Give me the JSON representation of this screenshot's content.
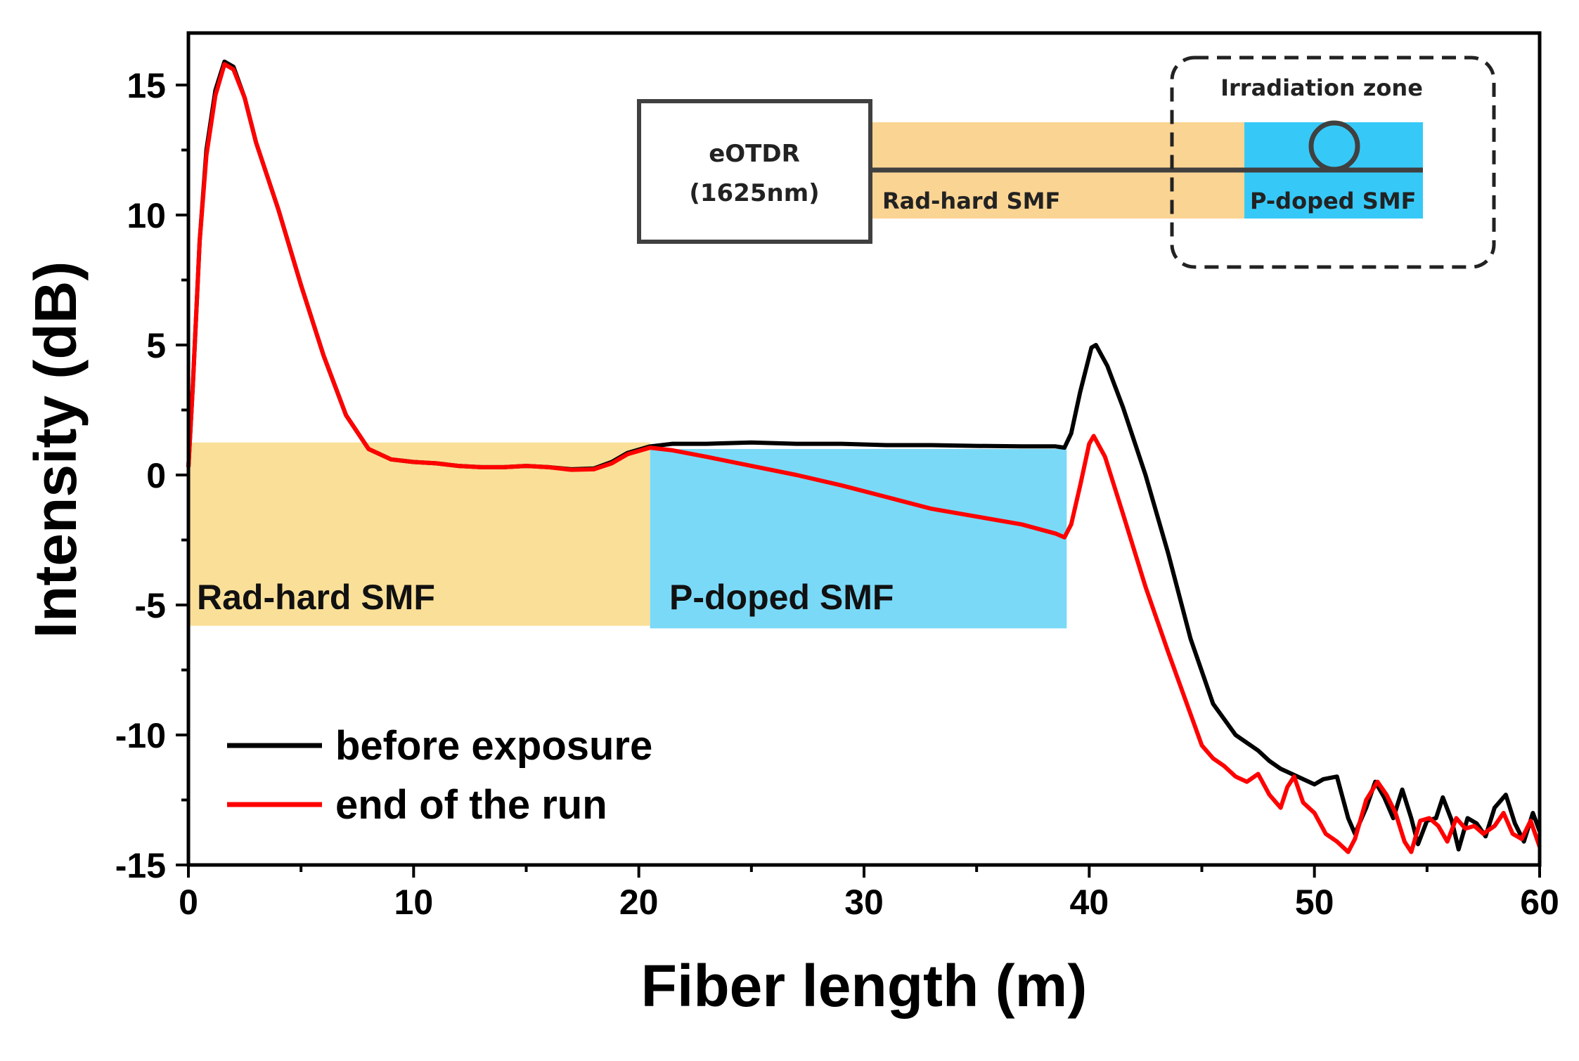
{
  "chart_data": {
    "type": "line",
    "xlabel": "Fiber length (m)",
    "ylabel": "Intensity (dB)",
    "xlim": [
      0,
      60
    ],
    "ylim": [
      -15,
      17
    ],
    "x_ticks": [
      0,
      10,
      20,
      30,
      40,
      50,
      60
    ],
    "x_tick_labels": [
      "0",
      "10",
      "20",
      "30",
      "40",
      "50",
      "60"
    ],
    "y_ticks": [
      15,
      10,
      5,
      0,
      -5,
      -10,
      -15
    ],
    "y_tick_labels": [
      "15",
      "10",
      "5",
      "0",
      "-5",
      "-10",
      "-15"
    ],
    "grid": false,
    "legend_position": "bottom-left",
    "regions": [
      {
        "label": "Rad-hard SMF",
        "x": [
          0,
          20.5
        ],
        "y": [
          -5.8,
          1.25
        ],
        "color": "#fadf98"
      },
      {
        "label": "P-doped SMF",
        "x": [
          20.5,
          39
        ],
        "y": [
          -5.9,
          1.0
        ],
        "color": "#7ad9f7"
      }
    ],
    "series": [
      {
        "name": "before exposure",
        "color": "#000000",
        "points": [
          [
            0,
            0.3
          ],
          [
            0.2,
            3.5
          ],
          [
            0.5,
            9
          ],
          [
            0.8,
            12.5
          ],
          [
            1.2,
            14.8
          ],
          [
            1.6,
            15.9
          ],
          [
            2.0,
            15.7
          ],
          [
            2.5,
            14.5
          ],
          [
            3,
            12.8
          ],
          [
            4,
            10.2
          ],
          [
            5,
            7.3
          ],
          [
            6,
            4.6
          ],
          [
            7,
            2.3
          ],
          [
            8,
            1.0
          ],
          [
            9,
            0.6
          ],
          [
            10,
            0.5
          ],
          [
            11,
            0.45
          ],
          [
            12,
            0.35
          ],
          [
            13,
            0.3
          ],
          [
            14,
            0.3
          ],
          [
            15,
            0.35
          ],
          [
            16,
            0.3
          ],
          [
            17,
            0.22
          ],
          [
            18,
            0.25
          ],
          [
            18.8,
            0.5
          ],
          [
            19.5,
            0.85
          ],
          [
            20.5,
            1.1
          ],
          [
            21.5,
            1.2
          ],
          [
            23,
            1.2
          ],
          [
            25,
            1.25
          ],
          [
            27,
            1.2
          ],
          [
            29,
            1.2
          ],
          [
            31,
            1.15
          ],
          [
            33,
            1.15
          ],
          [
            35,
            1.12
          ],
          [
            37,
            1.1
          ],
          [
            38.5,
            1.1
          ],
          [
            38.9,
            1.05
          ],
          [
            39.2,
            1.6
          ],
          [
            39.6,
            3.2
          ],
          [
            40.1,
            4.9
          ],
          [
            40.3,
            5.0
          ],
          [
            40.8,
            4.2
          ],
          [
            41.5,
            2.6
          ],
          [
            42.5,
            0
          ],
          [
            43.5,
            -3
          ],
          [
            44.5,
            -6.3
          ],
          [
            45.5,
            -8.8
          ],
          [
            46,
            -9.4
          ],
          [
            46.5,
            -10.0
          ],
          [
            47,
            -10.3
          ],
          [
            47.5,
            -10.6
          ],
          [
            48,
            -11.0
          ],
          [
            48.5,
            -11.3
          ],
          [
            49,
            -11.5
          ],
          [
            49.5,
            -11.7
          ],
          [
            50,
            -11.9
          ],
          [
            50.4,
            -11.7
          ],
          [
            51,
            -11.6
          ],
          [
            51.5,
            -13.2
          ],
          [
            51.8,
            -13.8
          ],
          [
            52.3,
            -12.8
          ],
          [
            52.7,
            -11.8
          ],
          [
            53.1,
            -12.4
          ],
          [
            53.5,
            -13.2
          ],
          [
            53.9,
            -12.1
          ],
          [
            54.3,
            -13.2
          ],
          [
            54.6,
            -14.2
          ],
          [
            55,
            -13.3
          ],
          [
            55.4,
            -13.2
          ],
          [
            55.7,
            -12.4
          ],
          [
            56.1,
            -13.3
          ],
          [
            56.4,
            -14.4
          ],
          [
            56.8,
            -13.2
          ],
          [
            57.2,
            -13.4
          ],
          [
            57.6,
            -13.9
          ],
          [
            58,
            -12.8
          ],
          [
            58.5,
            -12.3
          ],
          [
            58.9,
            -13.4
          ],
          [
            59.3,
            -14.1
          ],
          [
            59.7,
            -13.0
          ],
          [
            60,
            -13.7
          ]
        ]
      },
      {
        "name": "end of the run",
        "color": "#ff0000",
        "points": [
          [
            0,
            0.3
          ],
          [
            0.2,
            3.5
          ],
          [
            0.5,
            9
          ],
          [
            0.8,
            12.3
          ],
          [
            1.2,
            14.6
          ],
          [
            1.6,
            15.8
          ],
          [
            2.0,
            15.6
          ],
          [
            2.5,
            14.5
          ],
          [
            3,
            12.8
          ],
          [
            4,
            10.2
          ],
          [
            5,
            7.3
          ],
          [
            6,
            4.6
          ],
          [
            7,
            2.3
          ],
          [
            8,
            1.0
          ],
          [
            9,
            0.6
          ],
          [
            10,
            0.5
          ],
          [
            11,
            0.45
          ],
          [
            12,
            0.35
          ],
          [
            13,
            0.3
          ],
          [
            14,
            0.3
          ],
          [
            15,
            0.35
          ],
          [
            16,
            0.3
          ],
          [
            17,
            0.2
          ],
          [
            18,
            0.22
          ],
          [
            18.8,
            0.45
          ],
          [
            19.5,
            0.8
          ],
          [
            20.5,
            1.05
          ],
          [
            21.5,
            0.95
          ],
          [
            23,
            0.7
          ],
          [
            25,
            0.35
          ],
          [
            27,
            0.0
          ],
          [
            29,
            -0.4
          ],
          [
            31,
            -0.85
          ],
          [
            33,
            -1.3
          ],
          [
            35,
            -1.6
          ],
          [
            37,
            -1.9
          ],
          [
            38.5,
            -2.25
          ],
          [
            38.9,
            -2.4
          ],
          [
            39.2,
            -1.9
          ],
          [
            39.6,
            -0.4
          ],
          [
            40.0,
            1.2
          ],
          [
            40.2,
            1.5
          ],
          [
            40.7,
            0.7
          ],
          [
            41.5,
            -1.5
          ],
          [
            42.5,
            -4.3
          ],
          [
            43.5,
            -6.8
          ],
          [
            44.5,
            -9.2
          ],
          [
            45,
            -10.4
          ],
          [
            45.5,
            -10.9
          ],
          [
            46,
            -11.2
          ],
          [
            46.5,
            -11.6
          ],
          [
            47,
            -11.8
          ],
          [
            47.5,
            -11.5
          ],
          [
            48,
            -12.3
          ],
          [
            48.5,
            -12.8
          ],
          [
            48.8,
            -12.0
          ],
          [
            49.1,
            -11.6
          ],
          [
            49.5,
            -12.6
          ],
          [
            50,
            -13.0
          ],
          [
            50.5,
            -13.8
          ],
          [
            51,
            -14.1
          ],
          [
            51.5,
            -14.5
          ],
          [
            51.8,
            -14.0
          ],
          [
            52.3,
            -12.5
          ],
          [
            52.8,
            -11.8
          ],
          [
            53.2,
            -12.3
          ],
          [
            53.6,
            -13.0
          ],
          [
            54,
            -14.1
          ],
          [
            54.3,
            -14.5
          ],
          [
            54.7,
            -13.3
          ],
          [
            55.1,
            -13.2
          ],
          [
            55.5,
            -13.5
          ],
          [
            55.9,
            -14.1
          ],
          [
            56.3,
            -13.2
          ],
          [
            56.7,
            -13.6
          ],
          [
            57.1,
            -13.5
          ],
          [
            57.5,
            -13.8
          ],
          [
            58,
            -13.5
          ],
          [
            58.4,
            -13.0
          ],
          [
            58.8,
            -13.8
          ],
          [
            59.2,
            -14.0
          ],
          [
            59.6,
            -13.3
          ],
          [
            60,
            -14.3
          ]
        ]
      }
    ],
    "legend": [
      {
        "label": "before exposure",
        "color": "#000000"
      },
      {
        "label": "end of the run",
        "color": "#ff0000"
      }
    ]
  },
  "inset": {
    "device_line1": "eOTDR",
    "device_line2": "(1625nm)",
    "rad_hard_label": "Rad-hard SMF",
    "p_doped_label": "P-doped SMF",
    "zone_label": "Irradiation zone",
    "colors": {
      "rad_hard": "#fad493",
      "p_doped": "#36c9f8",
      "line": "#404040"
    }
  }
}
